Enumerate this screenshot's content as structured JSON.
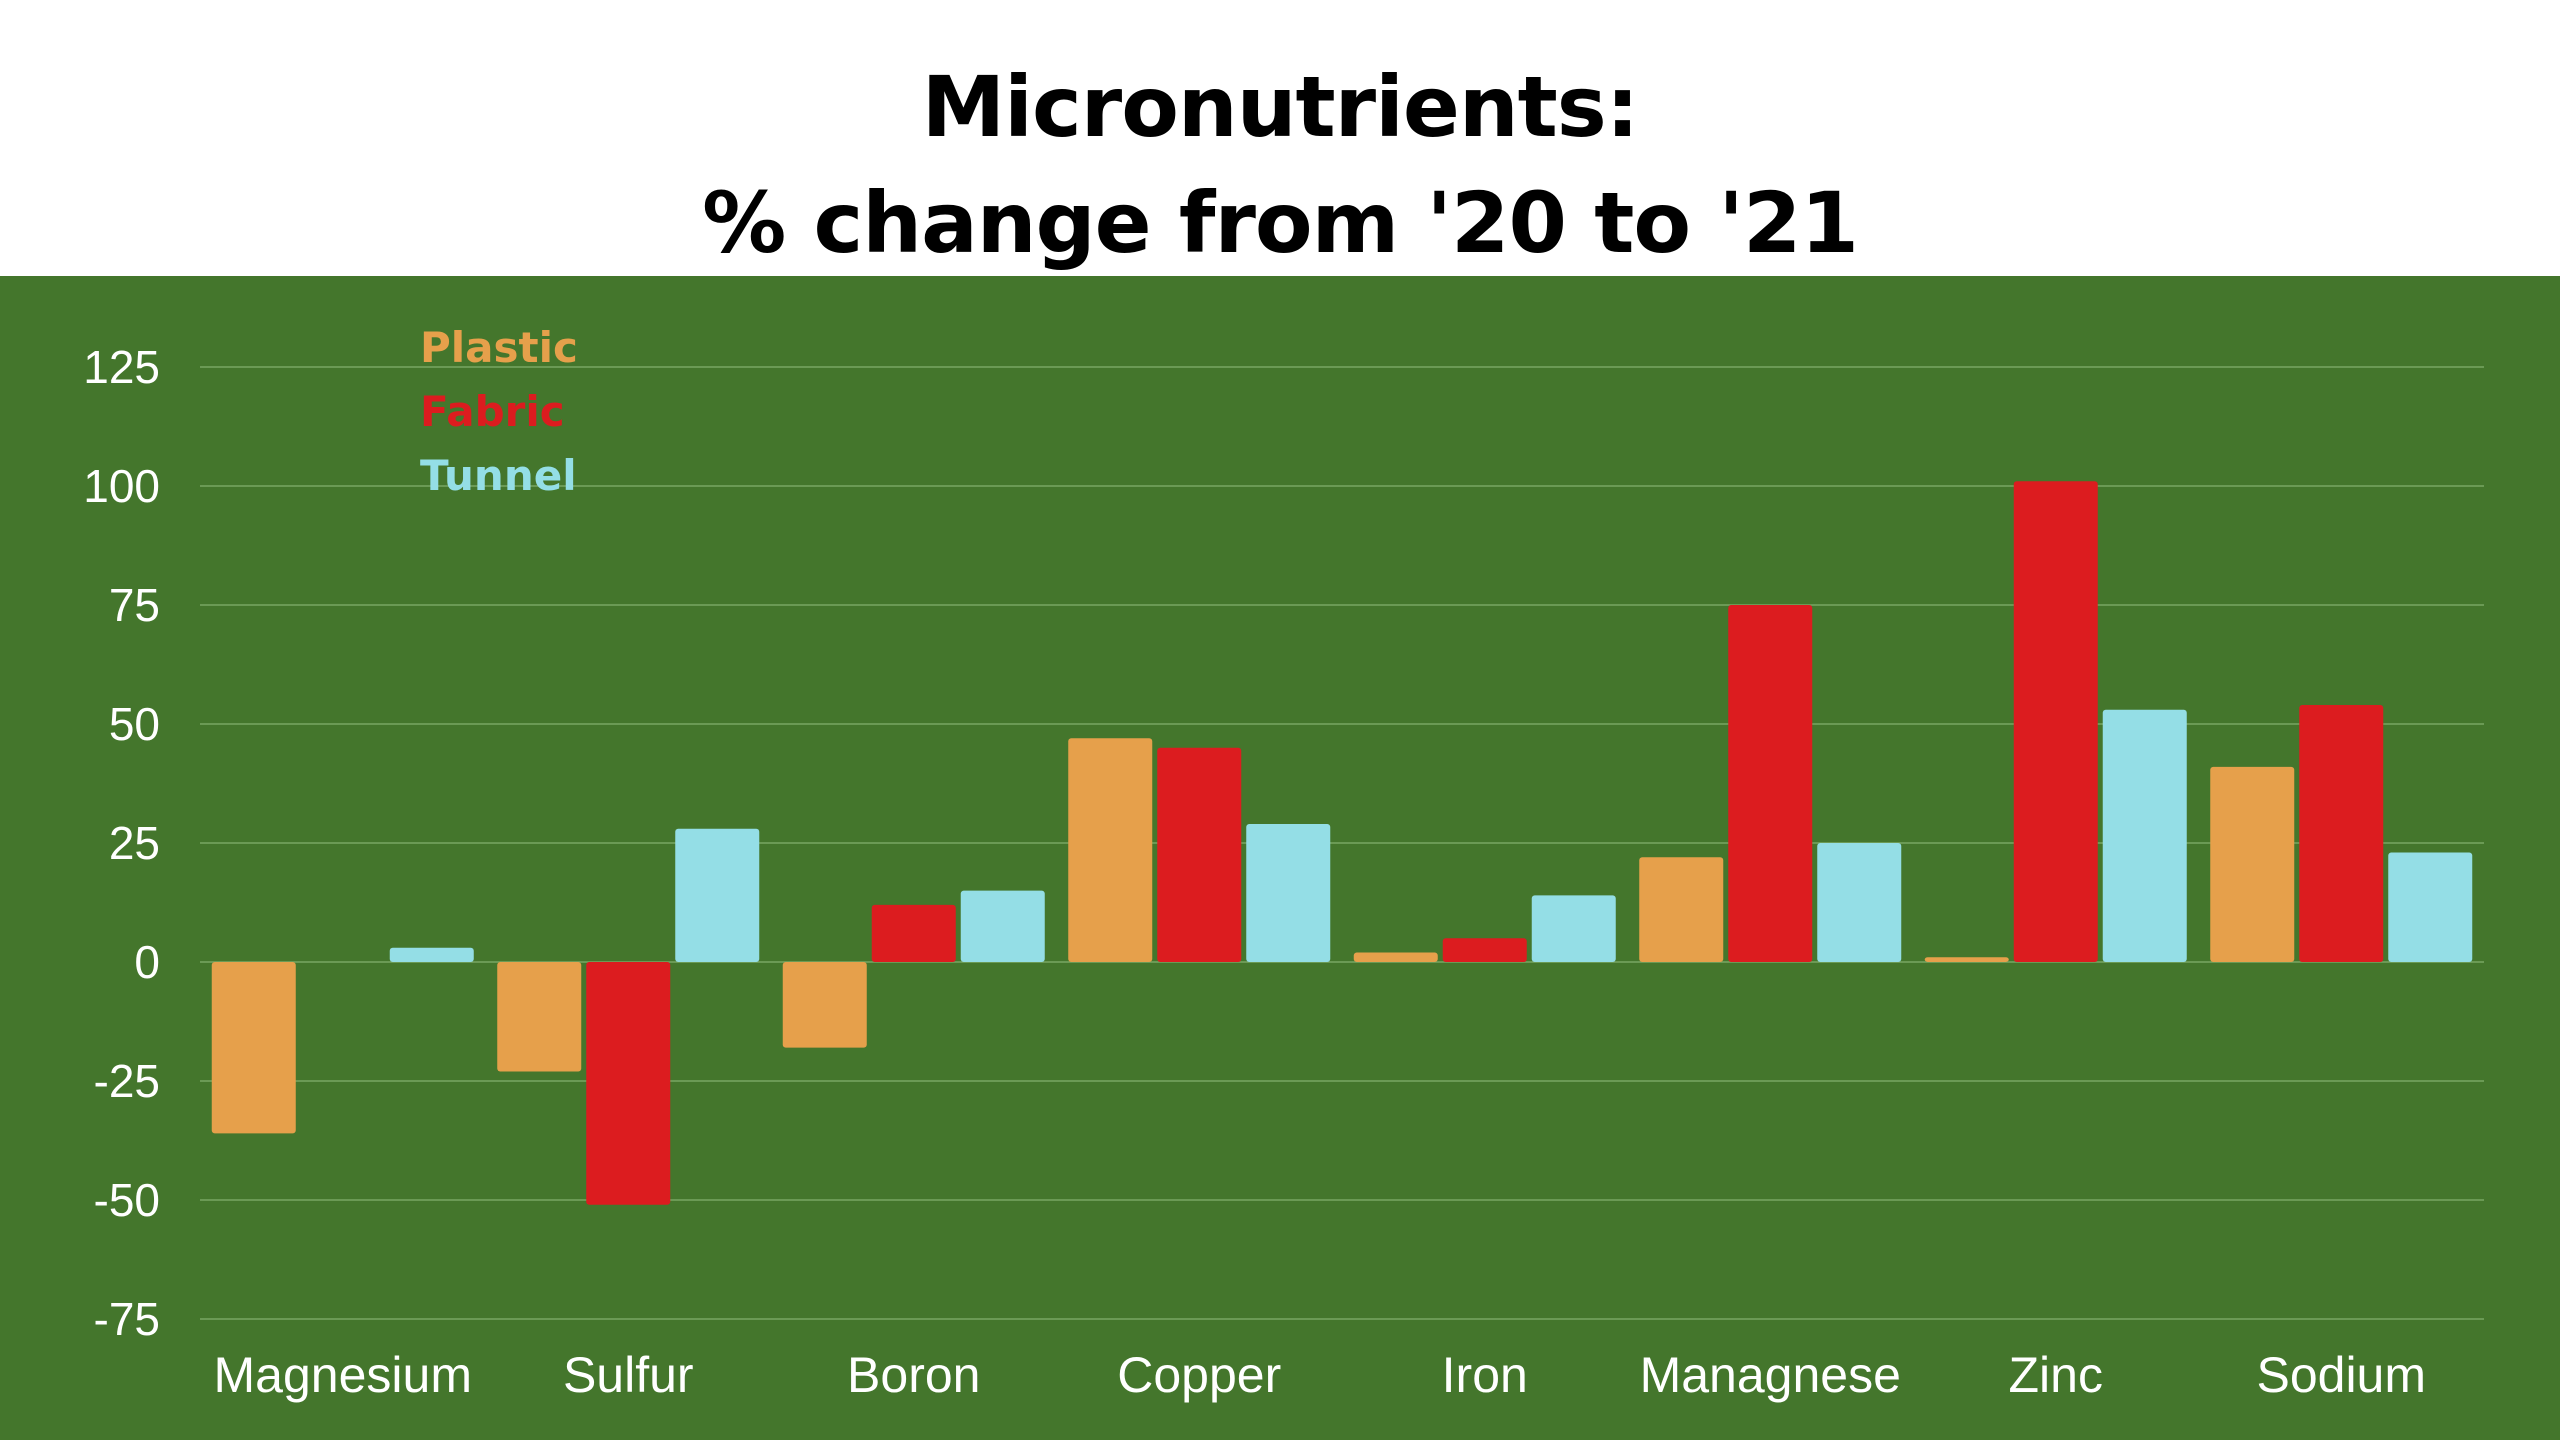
{
  "colors": {
    "background": "#44762c",
    "gridline": "#6b9a55",
    "text": "#ffffff",
    "plastic": "#e6a04b",
    "fabric": "#dc1c1f",
    "tunnel": "#94dee6"
  },
  "chart_data": {
    "type": "bar",
    "title": "Micronutrients:",
    "subtitle": "% change from '20 to '21",
    "xlabel": "",
    "ylabel": "",
    "categories": [
      "Magnesium",
      "Sulfur",
      "Boron",
      "Copper",
      "Iron",
      "Managnese",
      "Zinc",
      "Sodium"
    ],
    "series": [
      {
        "name": "Plastic",
        "color": "#e6a04b",
        "values": [
          -36,
          -23,
          -18,
          47,
          2,
          22,
          1,
          41
        ]
      },
      {
        "name": "Fabric",
        "color": "#dc1c1f",
        "values": [
          0,
          -51,
          12,
          45,
          5,
          75,
          101,
          54
        ]
      },
      {
        "name": "Tunnel",
        "color": "#94dee6",
        "values": [
          3,
          28,
          15,
          29,
          14,
          25,
          53,
          23
        ]
      }
    ],
    "ylim": [
      -75,
      125
    ],
    "yticks": [
      "125",
      "100",
      "75",
      "50",
      "25",
      "0",
      "-25",
      "-50",
      "-75"
    ],
    "grid": true,
    "legend_position": "top-left"
  }
}
